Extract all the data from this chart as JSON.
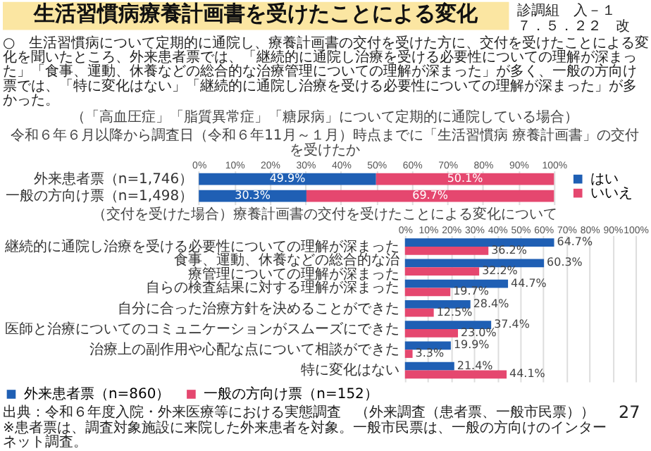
{
  "chart_data": [
    {
      "type": "bar",
      "orientation": "horizontal",
      "stacked": true,
      "title": "生活習慣病療養計画書を受けたことによる変化",
      "subtitle": "令和６年６月以降から調査日（令和６年11月～１月）時点までに「生活習慣病 療養計画書」の交付を受けたか",
      "annotations": [
        "診調組　入－１",
        "７．５．２２　改",
        "○　生活習慣病について定期的に通院し、療養計画書の交付を受けた方に、交付を受けたことによる変化を聞いたところ、外来患者票では、「継続的に通院し治療を受ける必要性についての理解が深まった」「食事、運動、休養などの総合的な治療管理についての理解が深まった」が多く、一般の方向け票では、「特に変化はない」「継続的に通院し治療を受ける必要性についての理解が深まった」が多かった。",
        "（「高血圧症」「脂質異常症」「糖尿病」について定期的に通院している場合）"
      ],
      "categories": [
        "外来患者票（n=1,746）",
        "一般の方向け票（n=1,498）"
      ],
      "series": [
        {
          "name": "はい",
          "color": "#1f5fb4",
          "values": [
            49.9,
            30.3
          ],
          "value_labels": [
            "49.9%",
            "30.3%"
          ]
        },
        {
          "name": "いいえ",
          "color": "#e5476f",
          "values": [
            50.1,
            69.7
          ],
          "value_labels": [
            "50.1%",
            "69.7%"
          ]
        }
      ],
      "xlim": [
        0,
        100
      ],
      "xticks": [
        {
          "value": 0,
          "label": "0%"
        },
        {
          "value": 10,
          "label": "10%"
        },
        {
          "value": 20,
          "label": "20%"
        },
        {
          "value": 30,
          "label": "30%"
        },
        {
          "value": 40,
          "label": "40%"
        },
        {
          "value": 50,
          "label": "50%"
        },
        {
          "value": 60,
          "label": "60%"
        },
        {
          "value": 70,
          "label": "70%"
        },
        {
          "value": 80,
          "label": "80%"
        },
        {
          "value": 90,
          "label": "90%"
        },
        {
          "value": 100,
          "label": "100%"
        }
      ],
      "grid": "x",
      "legend": "right"
    },
    {
      "type": "bar",
      "orientation": "horizontal",
      "title": "（交付を受けた場合）療養計画書の交付を受けたことによる変化について",
      "annotations": [
        "出典：令和６年度入院・外来医療等における実態調査　（外来調査（患者票、一般市民票））",
        "※患者票は、調査対象施設に来院した外来患者を対象。一般市民票は、一般の方向けのインターネット調査。",
        "27"
      ],
      "categories": [
        "継続的に通院し治療を受ける必要性についての理解が深まった",
        "食事、運動、休養などの総合的な治療管理についての理解が深まった",
        "自らの検査結果に対する理解が深まった",
        "自分に合った治療方針を決めることができた",
        "医師と治療についてのコミュニケーションがスムーズにできた",
        "治療上の副作用や心配な点について相談ができた",
        "特に変化はない"
      ],
      "series": [
        {
          "name": "外来患者票（n=860）",
          "color": "#1f5fb4",
          "values": [
            64.7,
            60.3,
            44.7,
            28.4,
            37.4,
            19.9,
            21.4
          ],
          "value_labels": [
            "64.7%",
            "60.3%",
            "44.7%",
            "28.4%",
            "37.4%",
            "19.9%",
            "21.4%"
          ]
        },
        {
          "name": "一般の方向け票（n=152）",
          "color": "#e5476f",
          "values": [
            36.2,
            32.2,
            19.7,
            12.5,
            23.0,
            3.3,
            44.1
          ],
          "value_labels": [
            "36.2%",
            "32.2%",
            "19.7%",
            "12.5%",
            "23.0%",
            "3.3%",
            "44.1%"
          ]
        }
      ],
      "xlim": [
        0,
        100
      ],
      "xticks": [
        {
          "value": 0,
          "label": "0%"
        },
        {
          "value": 10,
          "label": "10%"
        },
        {
          "value": 20,
          "label": "20%"
        },
        {
          "value": 30,
          "label": "30%"
        },
        {
          "value": 40,
          "label": "40%"
        },
        {
          "value": 50,
          "label": "50%"
        },
        {
          "value": 60,
          "label": "60%"
        },
        {
          "value": 70,
          "label": "70%"
        },
        {
          "value": 80,
          "label": "80%"
        },
        {
          "value": 90,
          "label": "90%"
        },
        {
          "value": 100,
          "label": "100%"
        }
      ],
      "grid": "x",
      "legend": "bottom"
    }
  ]
}
